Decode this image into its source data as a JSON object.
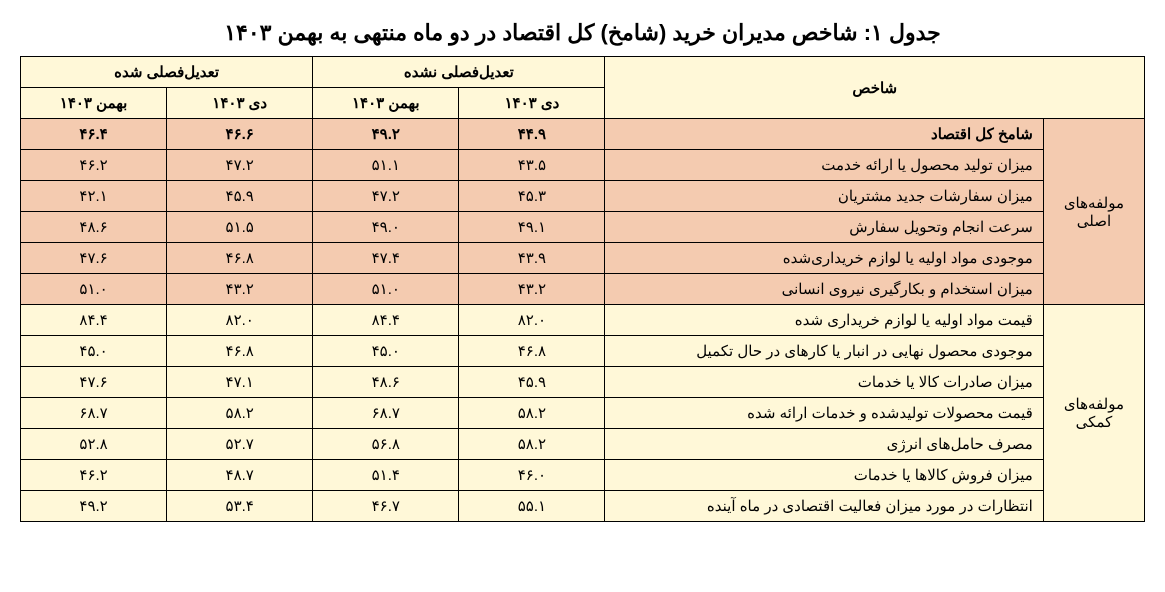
{
  "title": "جدول ۱: شاخص مدیران خرید (شامخ) کل اقتصاد در دو ماه منتهی به بهمن ۱۴۰۳",
  "headers": {
    "indicator": "شاخص",
    "unadjusted": "تعدیل‌فصلی نشده",
    "adjusted": "تعدیل‌فصلی شده",
    "dey": "دی ۱۴۰۳",
    "bahman": "بهمن ۱۴۰۳"
  },
  "cat1": "مولفه‌های اصلی",
  "cat2": "مولفه‌های کمکی",
  "rows1": [
    {
      "name": "شامخ  کل اقتصاد",
      "ua_d": "۴۴.۹",
      "ua_b": "۴۹.۲",
      "a_d": "۴۶.۶",
      "a_b": "۴۶.۴",
      "bold": true
    },
    {
      "name": "میزان تولید محصول یا ارائه خدمت",
      "ua_d": "۴۳.۵",
      "ua_b": "۵۱.۱",
      "a_d": "۴۷.۲",
      "a_b": "۴۶.۲"
    },
    {
      "name": "میزان سفارشات جدید مشتریان",
      "ua_d": "۴۵.۳",
      "ua_b": "۴۷.۲",
      "a_d": "۴۵.۹",
      "a_b": "۴۲.۱"
    },
    {
      "name": "سرعت انجام وتحویل سفارش",
      "ua_d": "۴۹.۱",
      "ua_b": "۴۹.۰",
      "a_d": "۵۱.۵",
      "a_b": "۴۸.۶"
    },
    {
      "name": "موجودی مواد اولیه یا لوازم خریداری‌شده",
      "ua_d": "۴۳.۹",
      "ua_b": "۴۷.۴",
      "a_d": "۴۶.۸",
      "a_b": "۴۷.۶"
    },
    {
      "name": "میزان استخدام و بکارگیری نیروی انسانی",
      "ua_d": "۴۳.۲",
      "ua_b": "۵۱.۰",
      "a_d": "۴۳.۲",
      "a_b": "۵۱.۰"
    }
  ],
  "rows2": [
    {
      "name": "قیمت مواد اولیه یا لوازم خریداری شده",
      "ua_d": "۸۲.۰",
      "ua_b": "۸۴.۴",
      "a_d": "۸۲.۰",
      "a_b": "۸۴.۴"
    },
    {
      "name": "موجودی محصول نهایی در انبار یا کارهای در حال تکمیل",
      "ua_d": "۴۶.۸",
      "ua_b": "۴۵.۰",
      "a_d": "۴۶.۸",
      "a_b": "۴۵.۰"
    },
    {
      "name": "میزان صادرات کالا یا خدمات",
      "ua_d": "۴۵.۹",
      "ua_b": "۴۸.۶",
      "a_d": "۴۷.۱",
      "a_b": "۴۷.۶"
    },
    {
      "name": "قیمت محصولات تولیدشده و خدمات ارائه شده",
      "ua_d": "۵۸.۲",
      "ua_b": "۶۸.۷",
      "a_d": "۵۸.۲",
      "a_b": "۶۸.۷"
    },
    {
      "name": "مصرف حامل‌های انرژی",
      "ua_d": "۵۸.۲",
      "ua_b": "۵۶.۸",
      "a_d": "۵۲.۷",
      "a_b": "۵۲.۸"
    },
    {
      "name": "میزان فروش کالاها یا خدمات",
      "ua_d": "۴۶.۰",
      "ua_b": "۵۱.۴",
      "a_d": "۴۸.۷",
      "a_b": "۴۶.۲"
    },
    {
      "name": "انتظارات در مورد میزان فعالیت اقتصادی در ماه آینده",
      "ua_d": "۵۵.۱",
      "ua_b": "۴۶.۷",
      "a_d": "۵۳.۴",
      "a_b": "۴۹.۲"
    }
  ]
}
